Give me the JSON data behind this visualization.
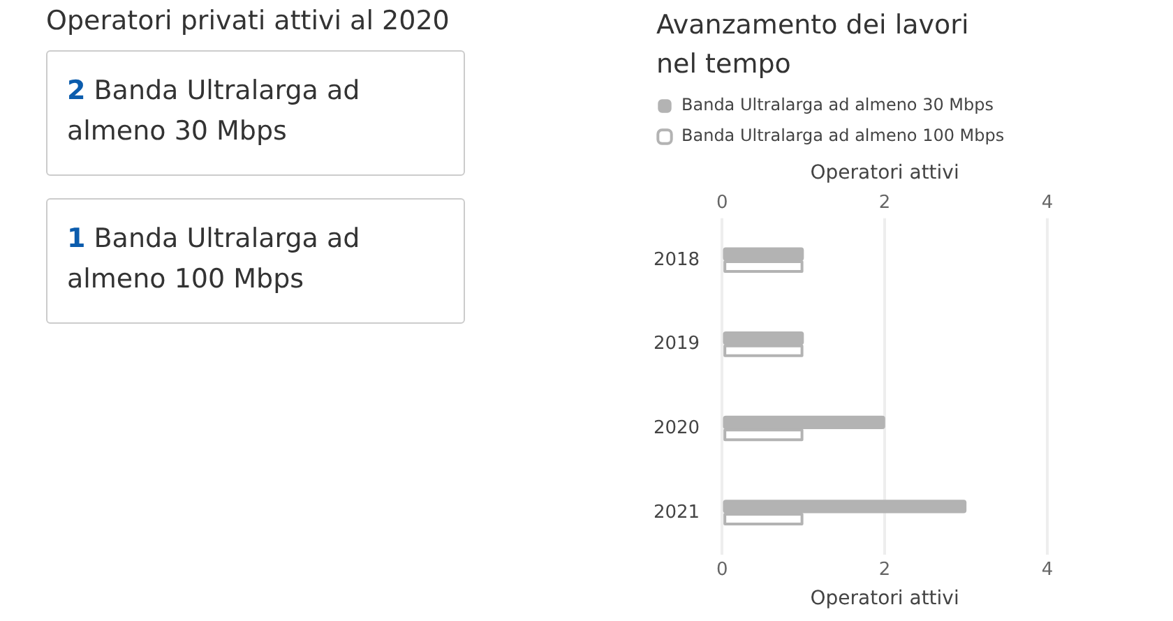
{
  "chart_data": [
    {
      "type": "other",
      "title": "Operatori privati attivi al 2020",
      "annotations": [
        "2 Banda Ultralarga ad almeno 30 Mbps",
        "1 Banda Ultralarga ad almeno 100 Mbps"
      ]
    },
    {
      "type": "bar",
      "orientation": "horizontal",
      "title": "Avanzamento dei lavori nel tempo",
      "categories": [
        "2018",
        "2019",
        "2020",
        "2021"
      ],
      "series": [
        {
          "name": "Banda Ultralarga ad almeno 30 Mbps",
          "color": "#b3b3b3",
          "values": [
            1,
            1,
            2,
            3
          ]
        },
        {
          "name": "Banda Ultralarga ad almeno 100 Mbps",
          "color": "#b3b3b3",
          "values": [
            1,
            1,
            1,
            1
          ]
        }
      ],
      "xlim": [
        0,
        4
      ],
      "xticks": [
        0,
        2,
        4
      ],
      "xlabel": "Operatori attivi",
      "x2lim": [
        0,
        4
      ],
      "x2ticks": [
        0,
        2,
        4
      ],
      "x2label": "Operatori attivi",
      "grid": "x",
      "legend": "top"
    }
  ]
}
